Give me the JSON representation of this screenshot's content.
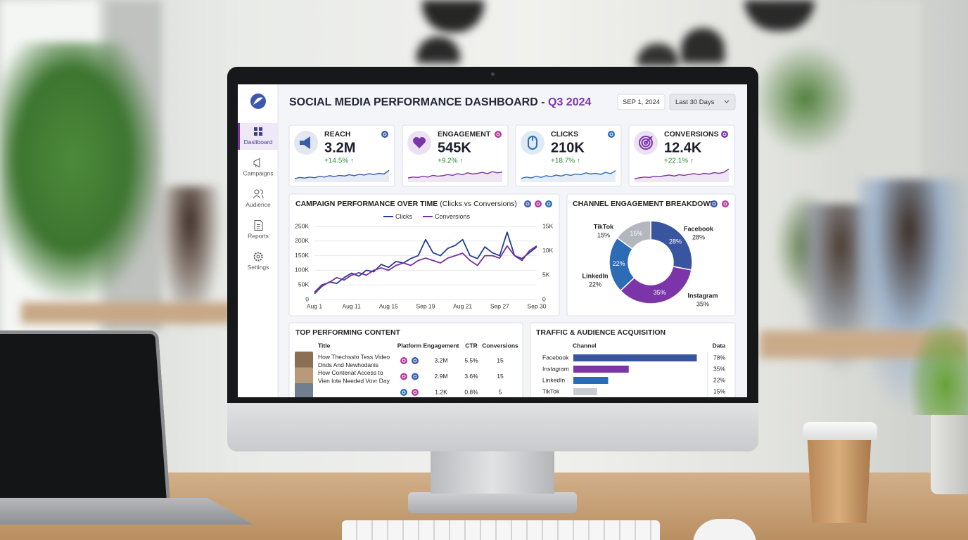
{
  "header": {
    "title": "SOCIAL MEDIA PERFORMANCE DASHBOARD - ",
    "title_accent": "Q3 2024",
    "date": "SEP 1, 2024",
    "range": "Last 30 Days"
  },
  "nav": [
    "Dasliboard",
    "Campaigns",
    "Audience",
    "Reports",
    "Settings"
  ],
  "kpis": [
    {
      "label": "REACH",
      "value": "3.2M",
      "change": "+14.5% ↑",
      "color": "#3b5bab",
      "trend": [
        20,
        28,
        24,
        30,
        26,
        34,
        30,
        38,
        33,
        40,
        36,
        44,
        38,
        46,
        42,
        50,
        45,
        52,
        48,
        70
      ]
    },
    {
      "label": "ENGAGEMENT",
      "value": "545K",
      "change": "+9.2% ↑",
      "color": "#7b35a8",
      "trend": [
        25,
        30,
        28,
        34,
        30,
        40,
        35,
        38,
        45,
        40,
        50,
        44,
        55,
        48,
        52,
        58,
        50,
        62,
        55,
        60
      ]
    },
    {
      "label": "CLICKS",
      "value": "210K",
      "change": "+18.7% ↑",
      "color": "#2f6db8",
      "trend": [
        22,
        30,
        25,
        35,
        28,
        38,
        32,
        42,
        36,
        45,
        40,
        48,
        44,
        55,
        48,
        52,
        46,
        58,
        50,
        68
      ]
    },
    {
      "label": "CONVERSIONS",
      "value": "12.4K",
      "change": "+22.1% ↑",
      "color": "#7b35a8",
      "trend": [
        20,
        26,
        30,
        28,
        34,
        32,
        38,
        42,
        36,
        44,
        40,
        46,
        50,
        44,
        52,
        48,
        56,
        52,
        58,
        78
      ]
    }
  ],
  "line_chart": {
    "title": "CAMPAIGN PERFORMANCE OVER TIME",
    "subtitle": "(Clicks vs Conversions)",
    "x": [
      "Aug 1",
      null,
      null,
      null,
      null,
      "Aug 11",
      null,
      null,
      null,
      null,
      "Aug 15",
      null,
      null,
      null,
      null,
      "Sep 19",
      null,
      null,
      null,
      null,
      "Aug 21",
      null,
      null,
      null,
      null,
      "Sep 27",
      null,
      null,
      null,
      null,
      "Sep 30"
    ],
    "series": [
      {
        "name": "Clicks",
        "color": "#243f8f",
        "values": [
          20000,
          45000,
          60000,
          55000,
          75000,
          90000,
          80000,
          100000,
          95000,
          120000,
          110000,
          130000,
          125000,
          140000,
          150000,
          205000,
          160000,
          150000,
          175000,
          185000,
          205000,
          150000,
          140000,
          180000,
          160000,
          150000,
          230000,
          150000,
          140000,
          160000,
          180000
        ]
      },
      {
        "name": "Conversions",
        "color": "#7b2d9e",
        "axis": "y2",
        "values": [
          1500,
          3000,
          3500,
          4500,
          4000,
          5000,
          5500,
          5000,
          6000,
          6500,
          6000,
          7000,
          7500,
          7000,
          8000,
          8500,
          8000,
          7500,
          8500,
          9000,
          9500,
          8000,
          7000,
          9000,
          9000,
          8500,
          11000,
          9000,
          8000,
          10000,
          11000
        ]
      }
    ],
    "ylim": [
      0,
      250000
    ],
    "yticks": [
      0,
      {
        "value": 50000,
        "label": "50K"
      },
      {
        "value": 100000,
        "label": "100K"
      },
      {
        "value": 150000,
        "label": "150K"
      },
      {
        "value": 200000,
        "label": "200K"
      },
      {
        "value": 250000,
        "label": "250K"
      }
    ],
    "y2lim": [
      0,
      15000
    ],
    "y2ticks": [
      0,
      {
        "value": 5000,
        "label": "5K"
      },
      {
        "value": 10000,
        "label": "10K"
      },
      {
        "value": 15000,
        "label": "15K"
      }
    ],
    "grid": true
  },
  "donut": {
    "title": "CHANNEL ENGAGEMENT BREAKDOWN",
    "segments": [
      {
        "name": "Facebook",
        "value": 28,
        "value_label": "28%",
        "color": "#3a55a0"
      },
      {
        "name": "Instagram",
        "value": 35,
        "value_label": "35%",
        "color": "#7b35a8"
      },
      {
        "name": "LinkedIn",
        "value": 22,
        "value_label": "22%",
        "color": "#2d6bb5"
      },
      {
        "name": "TikTok",
        "value": 15,
        "value_label": "15%",
        "color": "#b3b6bd"
      }
    ]
  },
  "top_content": {
    "title": "TOP PERFORMING CONTENT",
    "headers": [
      "Title",
      "Platform",
      "Engagement",
      "CTR",
      "Conversions"
    ],
    "rows": [
      {
        "title": [
          "How Thechssto Tess Video",
          "Dnds And Newhodanis"
        ],
        "engagement": "3.2M",
        "ctr": "5.5%",
        "conversions": 15
      },
      {
        "title": [
          "How Contenat Access to",
          "Vien lote Needed Vovr Day"
        ],
        "engagement": "2.9M",
        "ctr": "3.6%",
        "conversions": 15
      },
      {
        "engagement": "1.2K",
        "ctr": "0.8%",
        "conversions": 5
      }
    ]
  },
  "traffic": {
    "title": "TRAFFIC & AUDIENCE ACQUISITION",
    "headers": [
      "Channel",
      "Data"
    ],
    "rows": [
      {
        "channel": "Facebook",
        "value": 78,
        "value_label": "78%",
        "color": "#3a55a0"
      },
      {
        "channel": "Instagram",
        "value": 35,
        "value_label": "35%",
        "color": "#7b35a8"
      },
      {
        "channel": "LinkedIn",
        "value": 22,
        "value_label": "22%",
        "color": "#2d6bb5"
      },
      {
        "channel": "TikTok",
        "value": 15,
        "value_label": "15%",
        "color": "#c9ccd2"
      }
    ]
  }
}
